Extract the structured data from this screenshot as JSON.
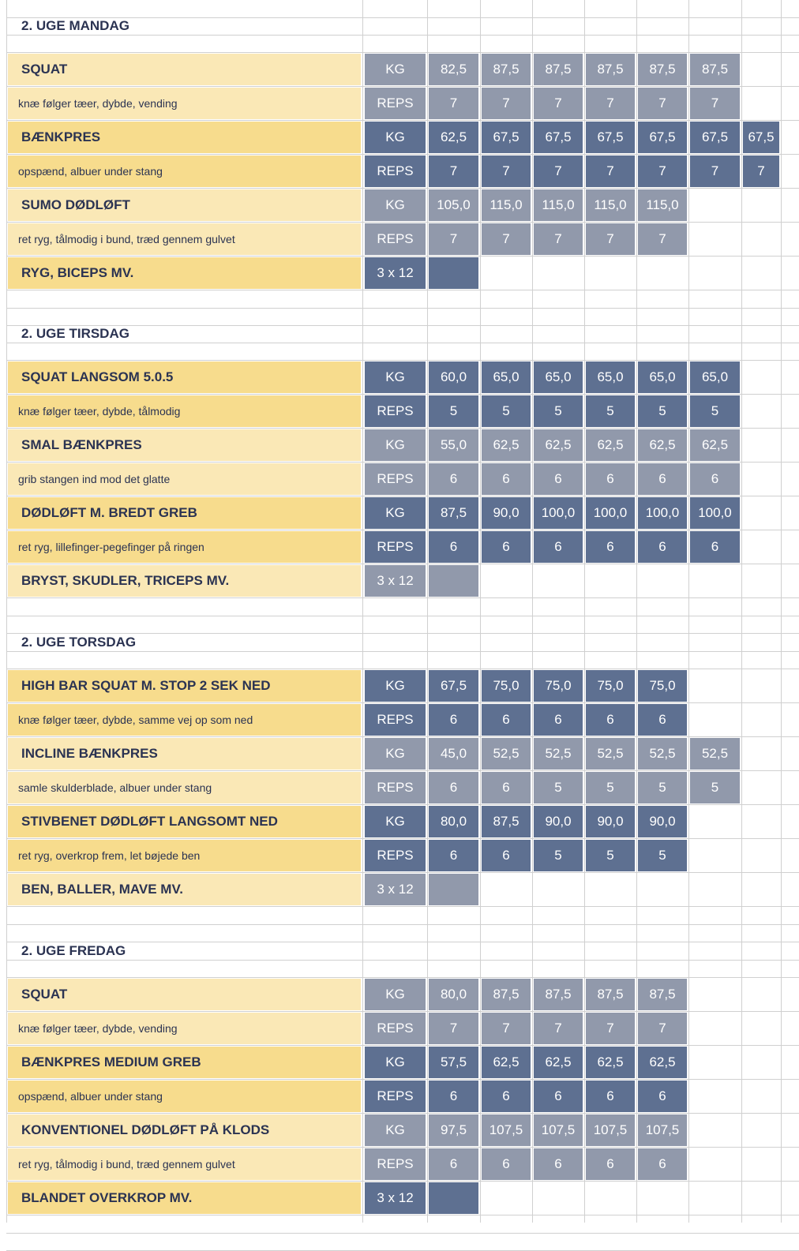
{
  "sections": [
    {
      "title": "2. UGE MANDAG",
      "exercises": [
        {
          "name": "SQUAT",
          "note": "knæ følger tæer, dybde, vending",
          "kg_label": "KG",
          "kg": [
            "82,5",
            "87,5",
            "87,5",
            "87,5",
            "87,5",
            "87,5"
          ],
          "reps_label": "REPS",
          "reps": [
            "7",
            "7",
            "7",
            "7",
            "7",
            "7"
          ],
          "shade": "light"
        },
        {
          "name": "BÆNKPRES",
          "note": "opspænd, albuer under stang",
          "kg_label": "KG",
          "kg": [
            "62,5",
            "67,5",
            "67,5",
            "67,5",
            "67,5",
            "67,5",
            "67,5"
          ],
          "reps_label": "REPS",
          "reps": [
            "7",
            "7",
            "7",
            "7",
            "7",
            "7",
            "7"
          ],
          "shade": "dark"
        },
        {
          "name": "SUMO DØDLØFT",
          "note": "ret ryg, tålmodig i bund, træd gennem gulvet",
          "kg_label": "KG",
          "kg": [
            "105,0",
            "115,0",
            "115,0",
            "115,0",
            "115,0"
          ],
          "reps_label": "REPS",
          "reps": [
            "7",
            "7",
            "7",
            "7",
            "7"
          ],
          "shade": "light"
        }
      ],
      "accessory": {
        "name": "RYG, BICEPS MV.",
        "sets": "3 x 12",
        "shade": "dark"
      }
    },
    {
      "title": "2. UGE TIRSDAG",
      "exercises": [
        {
          "name": "SQUAT LANGSOM 5.0.5",
          "note": "knæ følger tæer, dybde, tålmodig",
          "kg_label": "KG",
          "kg": [
            "60,0",
            "65,0",
            "65,0",
            "65,0",
            "65,0",
            "65,0"
          ],
          "reps_label": "REPS",
          "reps": [
            "5",
            "5",
            "5",
            "5",
            "5",
            "5"
          ],
          "shade": "dark"
        },
        {
          "name": "SMAL BÆNKPRES",
          "note": "grib stangen ind mod det glatte",
          "kg_label": "KG",
          "kg": [
            "55,0",
            "62,5",
            "62,5",
            "62,5",
            "62,5",
            "62,5"
          ],
          "reps_label": "REPS",
          "reps": [
            "6",
            "6",
            "6",
            "6",
            "6",
            "6"
          ],
          "shade": "light"
        },
        {
          "name": "DØDLØFT M. BREDT GREB",
          "note": "ret ryg, lillefinger-pegefinger på ringen",
          "kg_label": "KG",
          "kg": [
            "87,5",
            "90,0",
            "100,0",
            "100,0",
            "100,0",
            "100,0"
          ],
          "reps_label": "REPS",
          "reps": [
            "6",
            "6",
            "6",
            "6",
            "6",
            "6"
          ],
          "shade": "dark"
        }
      ],
      "accessory": {
        "name": "BRYST, SKUDLER, TRICEPS MV.",
        "sets": "3 x 12",
        "shade": "light"
      }
    },
    {
      "title": "2. UGE TORSDAG",
      "exercises": [
        {
          "name": "HIGH BAR SQUAT M. STOP 2 SEK NED",
          "note": "knæ følger tæer, dybde, samme vej op som ned",
          "kg_label": "KG",
          "kg": [
            "67,5",
            "75,0",
            "75,0",
            "75,0",
            "75,0"
          ],
          "reps_label": "REPS",
          "reps": [
            "6",
            "6",
            "6",
            "6",
            "6"
          ],
          "shade": "dark"
        },
        {
          "name": "INCLINE BÆNKPRES",
          "note": "samle skulderblade, albuer under stang",
          "kg_label": "KG",
          "kg": [
            "45,0",
            "52,5",
            "52,5",
            "52,5",
            "52,5",
            "52,5"
          ],
          "reps_label": "REPS",
          "reps": [
            "6",
            "6",
            "5",
            "5",
            "5",
            "5"
          ],
          "shade": "light"
        },
        {
          "name": "STIVBENET DØDLØFT LANGSOMT NED",
          "note": "ret ryg, overkrop frem, let bøjede ben",
          "kg_label": "KG",
          "kg": [
            "80,0",
            "87,5",
            "90,0",
            "90,0",
            "90,0"
          ],
          "reps_label": "REPS",
          "reps": [
            "6",
            "6",
            "5",
            "5",
            "5"
          ],
          "shade": "dark"
        }
      ],
      "accessory": {
        "name": "BEN, BALLER, MAVE MV.",
        "sets": "3 x 12",
        "shade": "light"
      }
    },
    {
      "title": "2. UGE FREDAG",
      "exercises": [
        {
          "name": "SQUAT",
          "note": "knæ følger tæer, dybde, vending",
          "kg_label": "KG",
          "kg": [
            "80,0",
            "87,5",
            "87,5",
            "87,5",
            "87,5"
          ],
          "reps_label": "REPS",
          "reps": [
            "7",
            "7",
            "7",
            "7",
            "7"
          ],
          "shade": "light"
        },
        {
          "name": "BÆNKPRES MEDIUM GREB",
          "note": "opspænd, albuer under stang",
          "kg_label": "KG",
          "kg": [
            "57,5",
            "62,5",
            "62,5",
            "62,5",
            "62,5"
          ],
          "reps_label": "REPS",
          "reps": [
            "6",
            "6",
            "6",
            "6",
            "6"
          ],
          "shade": "dark"
        },
        {
          "name": "KONVENTIONEL DØDLØFT PÅ KLODS",
          "note": "ret ryg, tålmodig i bund, træd gennem gulvet",
          "kg_label": "KG",
          "kg": [
            "97,5",
            "107,5",
            "107,5",
            "107,5",
            "107,5"
          ],
          "reps_label": "REPS",
          "reps": [
            "6",
            "6",
            "6",
            "6",
            "6"
          ],
          "shade": "light"
        }
      ],
      "accessory": {
        "name": "BLANDET OVERKROP MV.",
        "sets": "3 x 12",
        "shade": "dark"
      }
    }
  ]
}
